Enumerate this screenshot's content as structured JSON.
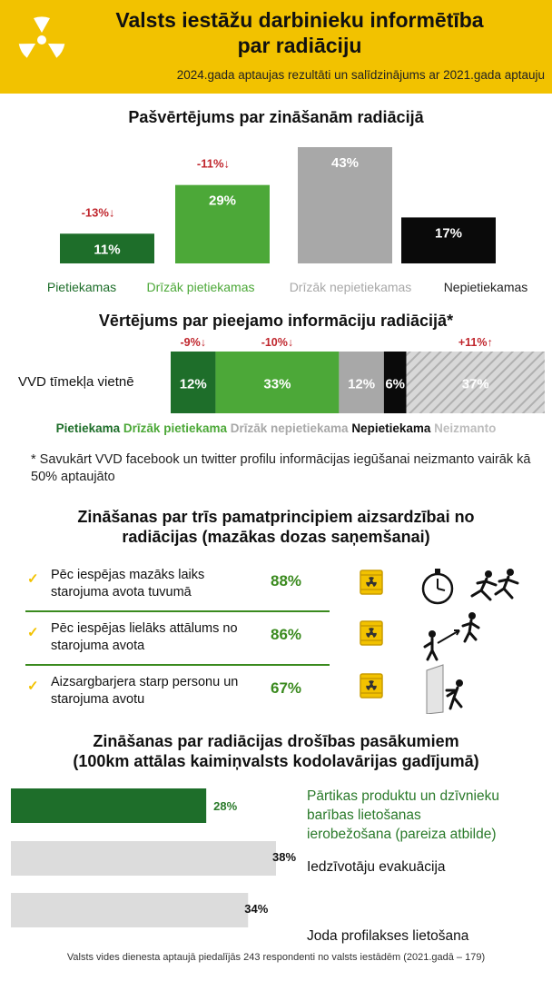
{
  "header": {
    "title_line1": "Valsts iestāžu darbinieku informētība",
    "title_line2": "par radiāciju",
    "subtitle": "2024.gada aptaujas rezultāti un salīdzinājums ar 2021.gada aptauju",
    "logo_icon": "radiation-icon"
  },
  "colors": {
    "yellow": "#f2c200",
    "dark_green": "#1e6e2a",
    "light_green": "#4ca838",
    "grey": "#a8a8a8",
    "black": "#0a0a0a",
    "red": "#c0262d",
    "bar_grey": "#dcdcdc"
  },
  "chart_data": [
    {
      "type": "bar",
      "title": "Pašvērtējums par zināšanām radiācijā",
      "categories": [
        "Pietiekamas",
        "Drīzāk pietiekamas",
        "Drīzāk nepietiekamas",
        "Nepietiekamas"
      ],
      "values": [
        11,
        29,
        43,
        17
      ],
      "value_labels": [
        "11%",
        "29%",
        "43%",
        "17%"
      ],
      "changes": [
        "-13%↓",
        "-11%↓",
        "",
        ""
      ],
      "colors": [
        "#1e6e2a",
        "#4ca838",
        "#a8a8a8",
        "#0a0a0a"
      ],
      "ylim": [
        0,
        43
      ]
    },
    {
      "type": "bar",
      "stacked": true,
      "orientation": "horizontal",
      "title": "Vērtējums par pieejamo informāciju radiācijā*",
      "categories": [
        "VVD tīmekļa vietnē"
      ],
      "series": [
        {
          "name": "Pietiekama",
          "values": [
            12
          ],
          "label": "12%",
          "change": "-9%↓",
          "color": "#1e6e2a"
        },
        {
          "name": "Drīzāk pietiekama",
          "values": [
            33
          ],
          "label": "33%",
          "change": "-10%↓",
          "color": "#4ca838"
        },
        {
          "name": "Drīzāk nepietiekama",
          "values": [
            12
          ],
          "label": "12%",
          "change": "",
          "color": "#a8a8a8"
        },
        {
          "name": "Nepietiekama",
          "values": [
            6
          ],
          "label": "6%",
          "change": "",
          "color": "#0a0a0a"
        },
        {
          "name": "Neizmanto",
          "values": [
            37
          ],
          "label": "37%",
          "change": "+11%↑",
          "color": "#c8c8c8"
        }
      ],
      "note": "* Savukārt VVD facebook un twitter profilu informācijas iegūšanai neizmanto vairāk kā 50% aptaujāto"
    },
    {
      "type": "table",
      "title_line1": "Zināšanas par trīs pamatprincipiem aizsardzībai no",
      "title_line2": "radiācijas (mazākas dozas saņemšanai)",
      "rows": [
        {
          "line1": "Pēc iespējas mazāks laiks",
          "line2": "starojuma avota tuvumā",
          "value": 88,
          "label": "88%",
          "icon": "stopwatch-runners-icon"
        },
        {
          "line1": "Pēc iespējas lielāks attālums no",
          "line2": "starojuma avota",
          "value": 86,
          "label": "86%",
          "icon": "distance-icon"
        },
        {
          "line1": "Aizsargbarjera starp personu un",
          "line2": "starojuma avotu",
          "value": 67,
          "label": "67%",
          "icon": "barrier-icon"
        }
      ]
    },
    {
      "type": "bar",
      "orientation": "horizontal",
      "title_line1": "Zināšanas par radiācijas drošības pasākumiem",
      "title_line2": "(100km attālas kaimiņvalsts kodolavārijas gadījumā)",
      "categories": [
        [
          "Pārtikas produktu un dzīvnieku",
          "barības lietošanas",
          "ierobežošana (pareiza atbilde)"
        ],
        [
          "Iedzīvotāju evakuācija"
        ],
        [
          "Joda profilakses lietošana"
        ]
      ],
      "values": [
        28,
        38,
        34
      ],
      "value_labels": [
        "28%",
        "38%",
        "34%"
      ],
      "colors": [
        "#1e6e2a",
        "#dcdcdc",
        "#dcdcdc"
      ],
      "xlim": [
        0,
        38
      ]
    }
  ],
  "footer": "Valsts vides dienesta aptaujā piedalījās 243 respondenti no valsts iestādēm (2021.gadā – 179)"
}
